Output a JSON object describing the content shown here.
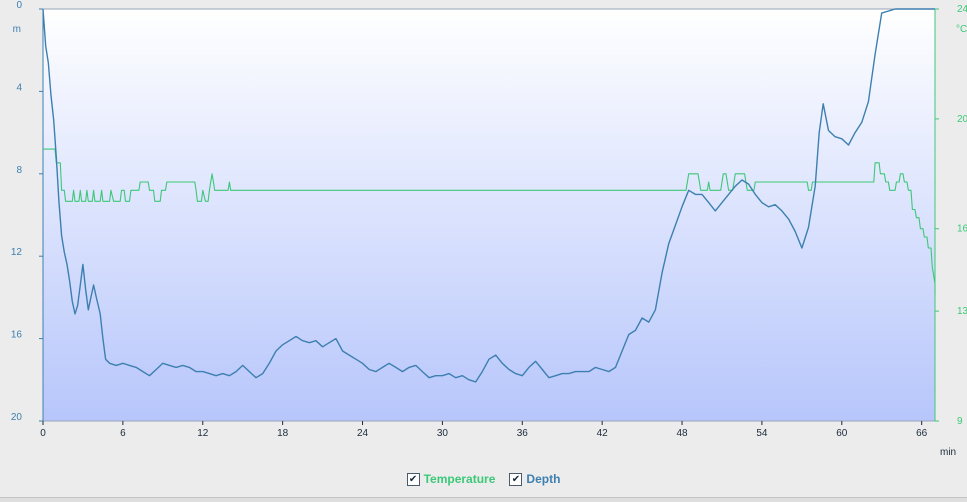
{
  "chart_data": {
    "type": "line",
    "x_unit": "min",
    "xlim": [
      0,
      67
    ],
    "x_ticks": [
      "0",
      "6",
      "12",
      "18",
      "24",
      "30",
      "36",
      "42",
      "48",
      "54",
      "60",
      "66"
    ],
    "y_left": {
      "unit": "m",
      "lim": [
        0,
        20
      ],
      "inverted": true,
      "ticks": [
        "0",
        "4",
        "8",
        "12",
        "16",
        "20"
      ]
    },
    "y_right": {
      "unit": "°C",
      "lim": [
        9,
        24
      ],
      "ticks": [
        "9",
        "13",
        "16",
        "20",
        "24"
      ]
    },
    "grid": false,
    "series": [
      {
        "name": "Temperature",
        "axis": "right",
        "color": "#3cc878",
        "points": [
          [
            0,
            18.9
          ],
          [
            0.9,
            18.9
          ],
          [
            1.0,
            18.4
          ],
          [
            1.3,
            18.4
          ],
          [
            1.4,
            17.4
          ],
          [
            1.6,
            17.4
          ],
          [
            1.7,
            17.0
          ],
          [
            2.2,
            17.0
          ],
          [
            2.3,
            17.4
          ],
          [
            2.4,
            17.0
          ],
          [
            2.7,
            17.0
          ],
          [
            2.8,
            17.4
          ],
          [
            2.9,
            17.0
          ],
          [
            3.2,
            17.0
          ],
          [
            3.3,
            17.4
          ],
          [
            3.4,
            17.0
          ],
          [
            3.7,
            17.0
          ],
          [
            3.8,
            17.4
          ],
          [
            3.9,
            17.0
          ],
          [
            4.3,
            17.0
          ],
          [
            4.4,
            17.4
          ],
          [
            4.5,
            17.0
          ],
          [
            5.0,
            17.0
          ],
          [
            5.1,
            17.4
          ],
          [
            5.3,
            17.0
          ],
          [
            5.8,
            17.0
          ],
          [
            5.9,
            17.4
          ],
          [
            6.1,
            17.4
          ],
          [
            6.2,
            17.0
          ],
          [
            6.5,
            17.0
          ],
          [
            6.6,
            17.4
          ],
          [
            7.2,
            17.4
          ],
          [
            7.3,
            17.7
          ],
          [
            7.9,
            17.7
          ],
          [
            8.0,
            17.4
          ],
          [
            8.3,
            17.4
          ],
          [
            8.4,
            17.0
          ],
          [
            8.8,
            17.0
          ],
          [
            8.9,
            17.4
          ],
          [
            9.2,
            17.4
          ],
          [
            9.3,
            17.7
          ],
          [
            11.4,
            17.7
          ],
          [
            11.5,
            17.4
          ],
          [
            11.6,
            17.0
          ],
          [
            11.9,
            17.0
          ],
          [
            12.0,
            17.4
          ],
          [
            12.2,
            17.0
          ],
          [
            12.4,
            17.0
          ],
          [
            12.5,
            17.4
          ],
          [
            12.6,
            17.7
          ],
          [
            12.7,
            18.0
          ],
          [
            12.8,
            17.7
          ],
          [
            12.9,
            17.4
          ],
          [
            13.9,
            17.4
          ],
          [
            14.0,
            17.7
          ],
          [
            14.1,
            17.4
          ],
          [
            48.3,
            17.4
          ],
          [
            48.4,
            17.7
          ],
          [
            48.5,
            18.0
          ],
          [
            49.2,
            18.0
          ],
          [
            49.3,
            17.7
          ],
          [
            49.4,
            17.4
          ],
          [
            49.9,
            17.4
          ],
          [
            50.0,
            17.7
          ],
          [
            50.1,
            17.4
          ],
          [
            50.9,
            17.4
          ],
          [
            51.0,
            17.7
          ],
          [
            51.1,
            18.0
          ],
          [
            51.3,
            18.0
          ],
          [
            51.4,
            17.7
          ],
          [
            51.5,
            17.4
          ],
          [
            51.8,
            17.4
          ],
          [
            51.9,
            17.7
          ],
          [
            52.0,
            18.0
          ],
          [
            52.7,
            18.0
          ],
          [
            52.8,
            17.7
          ],
          [
            52.9,
            17.4
          ],
          [
            53.4,
            17.4
          ],
          [
            53.5,
            17.7
          ],
          [
            57.4,
            17.7
          ],
          [
            57.5,
            17.4
          ],
          [
            57.7,
            17.4
          ],
          [
            57.8,
            17.7
          ],
          [
            62.4,
            17.7
          ],
          [
            62.5,
            18.4
          ],
          [
            62.8,
            18.4
          ],
          [
            62.9,
            18.0
          ],
          [
            63.2,
            18.0
          ],
          [
            63.3,
            17.7
          ],
          [
            63.5,
            17.7
          ],
          [
            63.6,
            17.4
          ],
          [
            64.0,
            17.4
          ],
          [
            64.1,
            17.7
          ],
          [
            64.3,
            17.7
          ],
          [
            64.4,
            18.0
          ],
          [
            64.6,
            18.0
          ],
          [
            64.7,
            17.7
          ],
          [
            64.9,
            17.7
          ],
          [
            65.0,
            17.4
          ],
          [
            65.2,
            17.4
          ],
          [
            65.3,
            16.7
          ],
          [
            65.5,
            16.7
          ],
          [
            65.6,
            16.4
          ],
          [
            65.8,
            16.4
          ],
          [
            65.9,
            16.0
          ],
          [
            66.1,
            16.0
          ],
          [
            66.2,
            15.7
          ],
          [
            66.4,
            15.7
          ],
          [
            66.5,
            15.3
          ],
          [
            66.7,
            15.3
          ],
          [
            66.8,
            14.6
          ],
          [
            67.0,
            14.0
          ],
          [
            67.0,
            13.6
          ]
        ]
      },
      {
        "name": "Depth",
        "axis": "left",
        "color": "#3d7fb0",
        "points": [
          [
            0,
            0
          ],
          [
            0.2,
            1.8
          ],
          [
            0.4,
            2.6
          ],
          [
            0.6,
            4.2
          ],
          [
            0.8,
            5.4
          ],
          [
            1.0,
            7.2
          ],
          [
            1.2,
            9.4
          ],
          [
            1.4,
            11.0
          ],
          [
            1.6,
            11.8
          ],
          [
            1.8,
            12.4
          ],
          [
            2.0,
            13.2
          ],
          [
            2.2,
            14.2
          ],
          [
            2.4,
            14.8
          ],
          [
            2.6,
            14.4
          ],
          [
            2.8,
            13.4
          ],
          [
            3.0,
            12.4
          ],
          [
            3.2,
            13.6
          ],
          [
            3.4,
            14.6
          ],
          [
            3.6,
            14.0
          ],
          [
            3.8,
            13.4
          ],
          [
            4.0,
            14.0
          ],
          [
            4.3,
            14.8
          ],
          [
            4.5,
            16.0
          ],
          [
            4.7,
            17.0
          ],
          [
            5.0,
            17.2
          ],
          [
            5.5,
            17.3
          ],
          [
            6,
            17.2
          ],
          [
            6.5,
            17.3
          ],
          [
            7,
            17.4
          ],
          [
            7.5,
            17.6
          ],
          [
            8,
            17.8
          ],
          [
            8.5,
            17.5
          ],
          [
            9,
            17.2
          ],
          [
            9.5,
            17.3
          ],
          [
            10,
            17.4
          ],
          [
            10.5,
            17.3
          ],
          [
            11,
            17.4
          ],
          [
            11.5,
            17.6
          ],
          [
            12,
            17.6
          ],
          [
            12.5,
            17.7
          ],
          [
            13,
            17.8
          ],
          [
            13.5,
            17.7
          ],
          [
            14,
            17.8
          ],
          [
            14.5,
            17.6
          ],
          [
            15,
            17.3
          ],
          [
            15.5,
            17.6
          ],
          [
            16,
            17.9
          ],
          [
            16.5,
            17.7
          ],
          [
            17,
            17.2
          ],
          [
            17.5,
            16.6
          ],
          [
            18,
            16.3
          ],
          [
            18.5,
            16.1
          ],
          [
            19,
            15.9
          ],
          [
            19.5,
            16.1
          ],
          [
            20,
            16.2
          ],
          [
            20.5,
            16.1
          ],
          [
            21,
            16.4
          ],
          [
            21.5,
            16.2
          ],
          [
            22,
            16.0
          ],
          [
            22.5,
            16.6
          ],
          [
            23,
            16.8
          ],
          [
            23.5,
            17.0
          ],
          [
            24,
            17.2
          ],
          [
            24.5,
            17.5
          ],
          [
            25,
            17.6
          ],
          [
            25.5,
            17.4
          ],
          [
            26,
            17.2
          ],
          [
            26.5,
            17.4
          ],
          [
            27,
            17.6
          ],
          [
            27.5,
            17.4
          ],
          [
            28,
            17.3
          ],
          [
            28.5,
            17.6
          ],
          [
            29,
            17.9
          ],
          [
            29.5,
            17.8
          ],
          [
            30,
            17.8
          ],
          [
            30.5,
            17.7
          ],
          [
            31,
            17.9
          ],
          [
            31.5,
            17.8
          ],
          [
            32,
            18.0
          ],
          [
            32.5,
            18.1
          ],
          [
            33,
            17.6
          ],
          [
            33.5,
            17.0
          ],
          [
            34,
            16.8
          ],
          [
            34.5,
            17.2
          ],
          [
            35,
            17.5
          ],
          [
            35.5,
            17.7
          ],
          [
            36,
            17.8
          ],
          [
            36.5,
            17.4
          ],
          [
            37,
            17.1
          ],
          [
            37.5,
            17.5
          ],
          [
            38,
            17.9
          ],
          [
            38.5,
            17.8
          ],
          [
            39,
            17.7
          ],
          [
            39.5,
            17.7
          ],
          [
            40,
            17.6
          ],
          [
            40.5,
            17.6
          ],
          [
            41,
            17.6
          ],
          [
            41.5,
            17.4
          ],
          [
            42,
            17.5
          ],
          [
            42.5,
            17.6
          ],
          [
            43,
            17.4
          ],
          [
            43.5,
            16.6
          ],
          [
            44,
            15.8
          ],
          [
            44.5,
            15.6
          ],
          [
            45,
            15.0
          ],
          [
            45.5,
            15.2
          ],
          [
            46,
            14.6
          ],
          [
            46.5,
            12.8
          ],
          [
            47,
            11.4
          ],
          [
            47.5,
            10.5
          ],
          [
            48,
            9.6
          ],
          [
            48.5,
            8.8
          ],
          [
            49,
            9.0
          ],
          [
            49.5,
            9.0
          ],
          [
            50,
            9.4
          ],
          [
            50.5,
            9.8
          ],
          [
            51,
            9.4
          ],
          [
            51.5,
            9.0
          ],
          [
            52,
            8.6
          ],
          [
            52.5,
            8.3
          ],
          [
            53,
            8.5
          ],
          [
            53.5,
            9.0
          ],
          [
            54,
            9.4
          ],
          [
            54.5,
            9.6
          ],
          [
            55,
            9.5
          ],
          [
            55.5,
            9.8
          ],
          [
            56,
            10.2
          ],
          [
            56.5,
            10.8
          ],
          [
            57,
            11.6
          ],
          [
            57.5,
            10.6
          ],
          [
            58,
            8.6
          ],
          [
            58.3,
            6.0
          ],
          [
            58.6,
            4.6
          ],
          [
            59,
            5.9
          ],
          [
            59.5,
            6.2
          ],
          [
            60,
            6.3
          ],
          [
            60.5,
            6.6
          ],
          [
            61,
            6.0
          ],
          [
            61.5,
            5.5
          ],
          [
            62,
            4.5
          ],
          [
            62.5,
            2.2
          ],
          [
            63,
            0.2
          ],
          [
            64,
            0.0
          ],
          [
            67,
            0.0
          ]
        ]
      }
    ]
  },
  "legend": {
    "temperature_label": "Temperature",
    "depth_label": "Depth",
    "check_glyph": "✔"
  },
  "colors": {
    "temperature": "#3cc878",
    "depth": "#3d7fb0",
    "plot_top": "#ffffff",
    "plot_bottom": "#b7c6fb"
  }
}
